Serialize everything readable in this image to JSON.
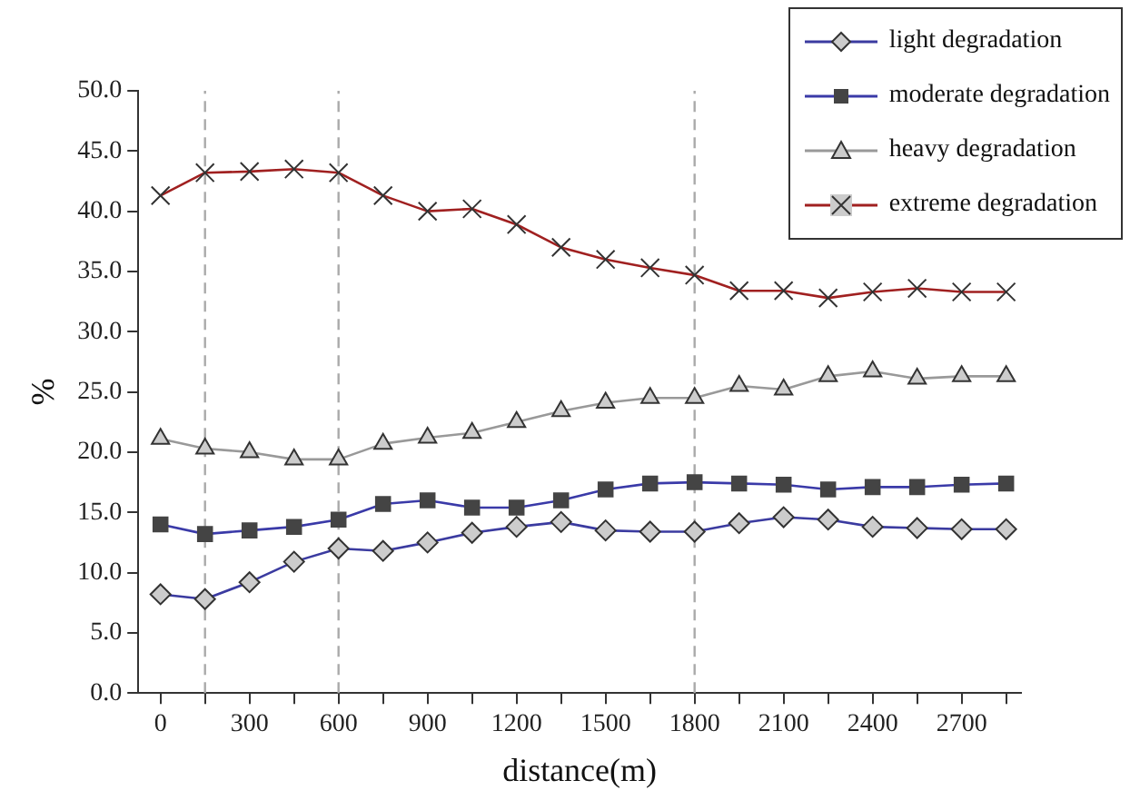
{
  "chart_data": {
    "type": "line",
    "xlabel": "distance(m)",
    "ylabel": "%",
    "legend": "top right",
    "grid": false,
    "line_style": "solid",
    "x": [
      0,
      150,
      300,
      450,
      600,
      750,
      900,
      1050,
      1200,
      1350,
      1500,
      1650,
      1800,
      1950,
      2100,
      2250,
      2400,
      2550,
      2700,
      2850
    ],
    "series": [
      {
        "name": "light degradation",
        "color": "#3b3ba0",
        "marker": "diamond",
        "values": [
          8.2,
          7.8,
          9.2,
          10.9,
          12.0,
          11.8,
          12.5,
          13.3,
          13.8,
          14.2,
          13.5,
          13.4,
          13.4,
          14.1,
          14.6,
          14.4,
          13.8,
          13.7,
          13.6,
          13.6
        ]
      },
      {
        "name": "moderate degradation",
        "color": "#3a3aa8",
        "marker": "square",
        "values": [
          14.0,
          13.2,
          13.5,
          13.8,
          14.4,
          15.7,
          16.0,
          15.4,
          15.4,
          16.0,
          16.9,
          17.4,
          17.5,
          17.4,
          17.3,
          16.9,
          17.1,
          17.1,
          17.3,
          17.4
        ]
      },
      {
        "name": "heavy degradation",
        "color": "#999999",
        "marker": "triangle",
        "values": [
          21.1,
          20.3,
          20.0,
          19.4,
          19.4,
          20.7,
          21.2,
          21.6,
          22.5,
          23.4,
          24.1,
          24.5,
          24.5,
          25.5,
          25.2,
          26.3,
          26.7,
          26.1,
          26.3,
          26.3
        ]
      },
      {
        "name": "extreme degradation",
        "color": "#a02020",
        "marker": "cross",
        "values": [
          41.3,
          43.2,
          43.3,
          43.5,
          43.2,
          41.3,
          40.0,
          40.2,
          38.9,
          37.0,
          36.0,
          35.3,
          34.7,
          33.4,
          33.4,
          32.8,
          33.3,
          33.6,
          33.3,
          33.3
        ]
      }
    ],
    "xlim": [
      -75,
      2900
    ],
    "xticks": [
      0,
      {
        "value": 150,
        "label": null
      },
      300,
      {
        "value": 450,
        "label": null
      },
      600,
      {
        "value": 750,
        "label": null
      },
      900,
      {
        "value": 1050,
        "label": null
      },
      1200,
      {
        "value": 1350,
        "label": null
      },
      1500,
      {
        "value": 1650,
        "label": null
      },
      1800,
      {
        "value": 1950,
        "label": null
      },
      2100,
      {
        "value": 2250,
        "label": null
      },
      2400,
      {
        "value": 2550,
        "label": null
      },
      2700,
      {
        "value": 2850,
        "label": null
      }
    ],
    "ylim": [
      0,
      50
    ],
    "yticks": [
      {
        "value": 0,
        "label": "0.0"
      },
      {
        "value": 5,
        "label": "5.0"
      },
      {
        "value": 10,
        "label": "10.0"
      },
      {
        "value": 15,
        "label": "15.0"
      },
      {
        "value": 20,
        "label": "20.0"
      },
      {
        "value": 25,
        "label": "25.0"
      },
      {
        "value": 30,
        "label": "30.0"
      },
      {
        "value": 35,
        "label": "35.0"
      },
      {
        "value": 40,
        "label": "40.0"
      },
      {
        "value": 45,
        "label": "45.0"
      },
      {
        "value": 50,
        "label": "50.0"
      }
    ],
    "ref_lines": [
      {
        "axis": "x",
        "value": 150,
        "color": "#aaaaaa",
        "line_style": "dashed"
      },
      {
        "axis": "x",
        "value": 600,
        "color": "#aaaaaa",
        "line_style": "dashed"
      },
      {
        "axis": "x",
        "value": 1800,
        "color": "#aaaaaa",
        "line_style": "dashed"
      }
    ]
  }
}
